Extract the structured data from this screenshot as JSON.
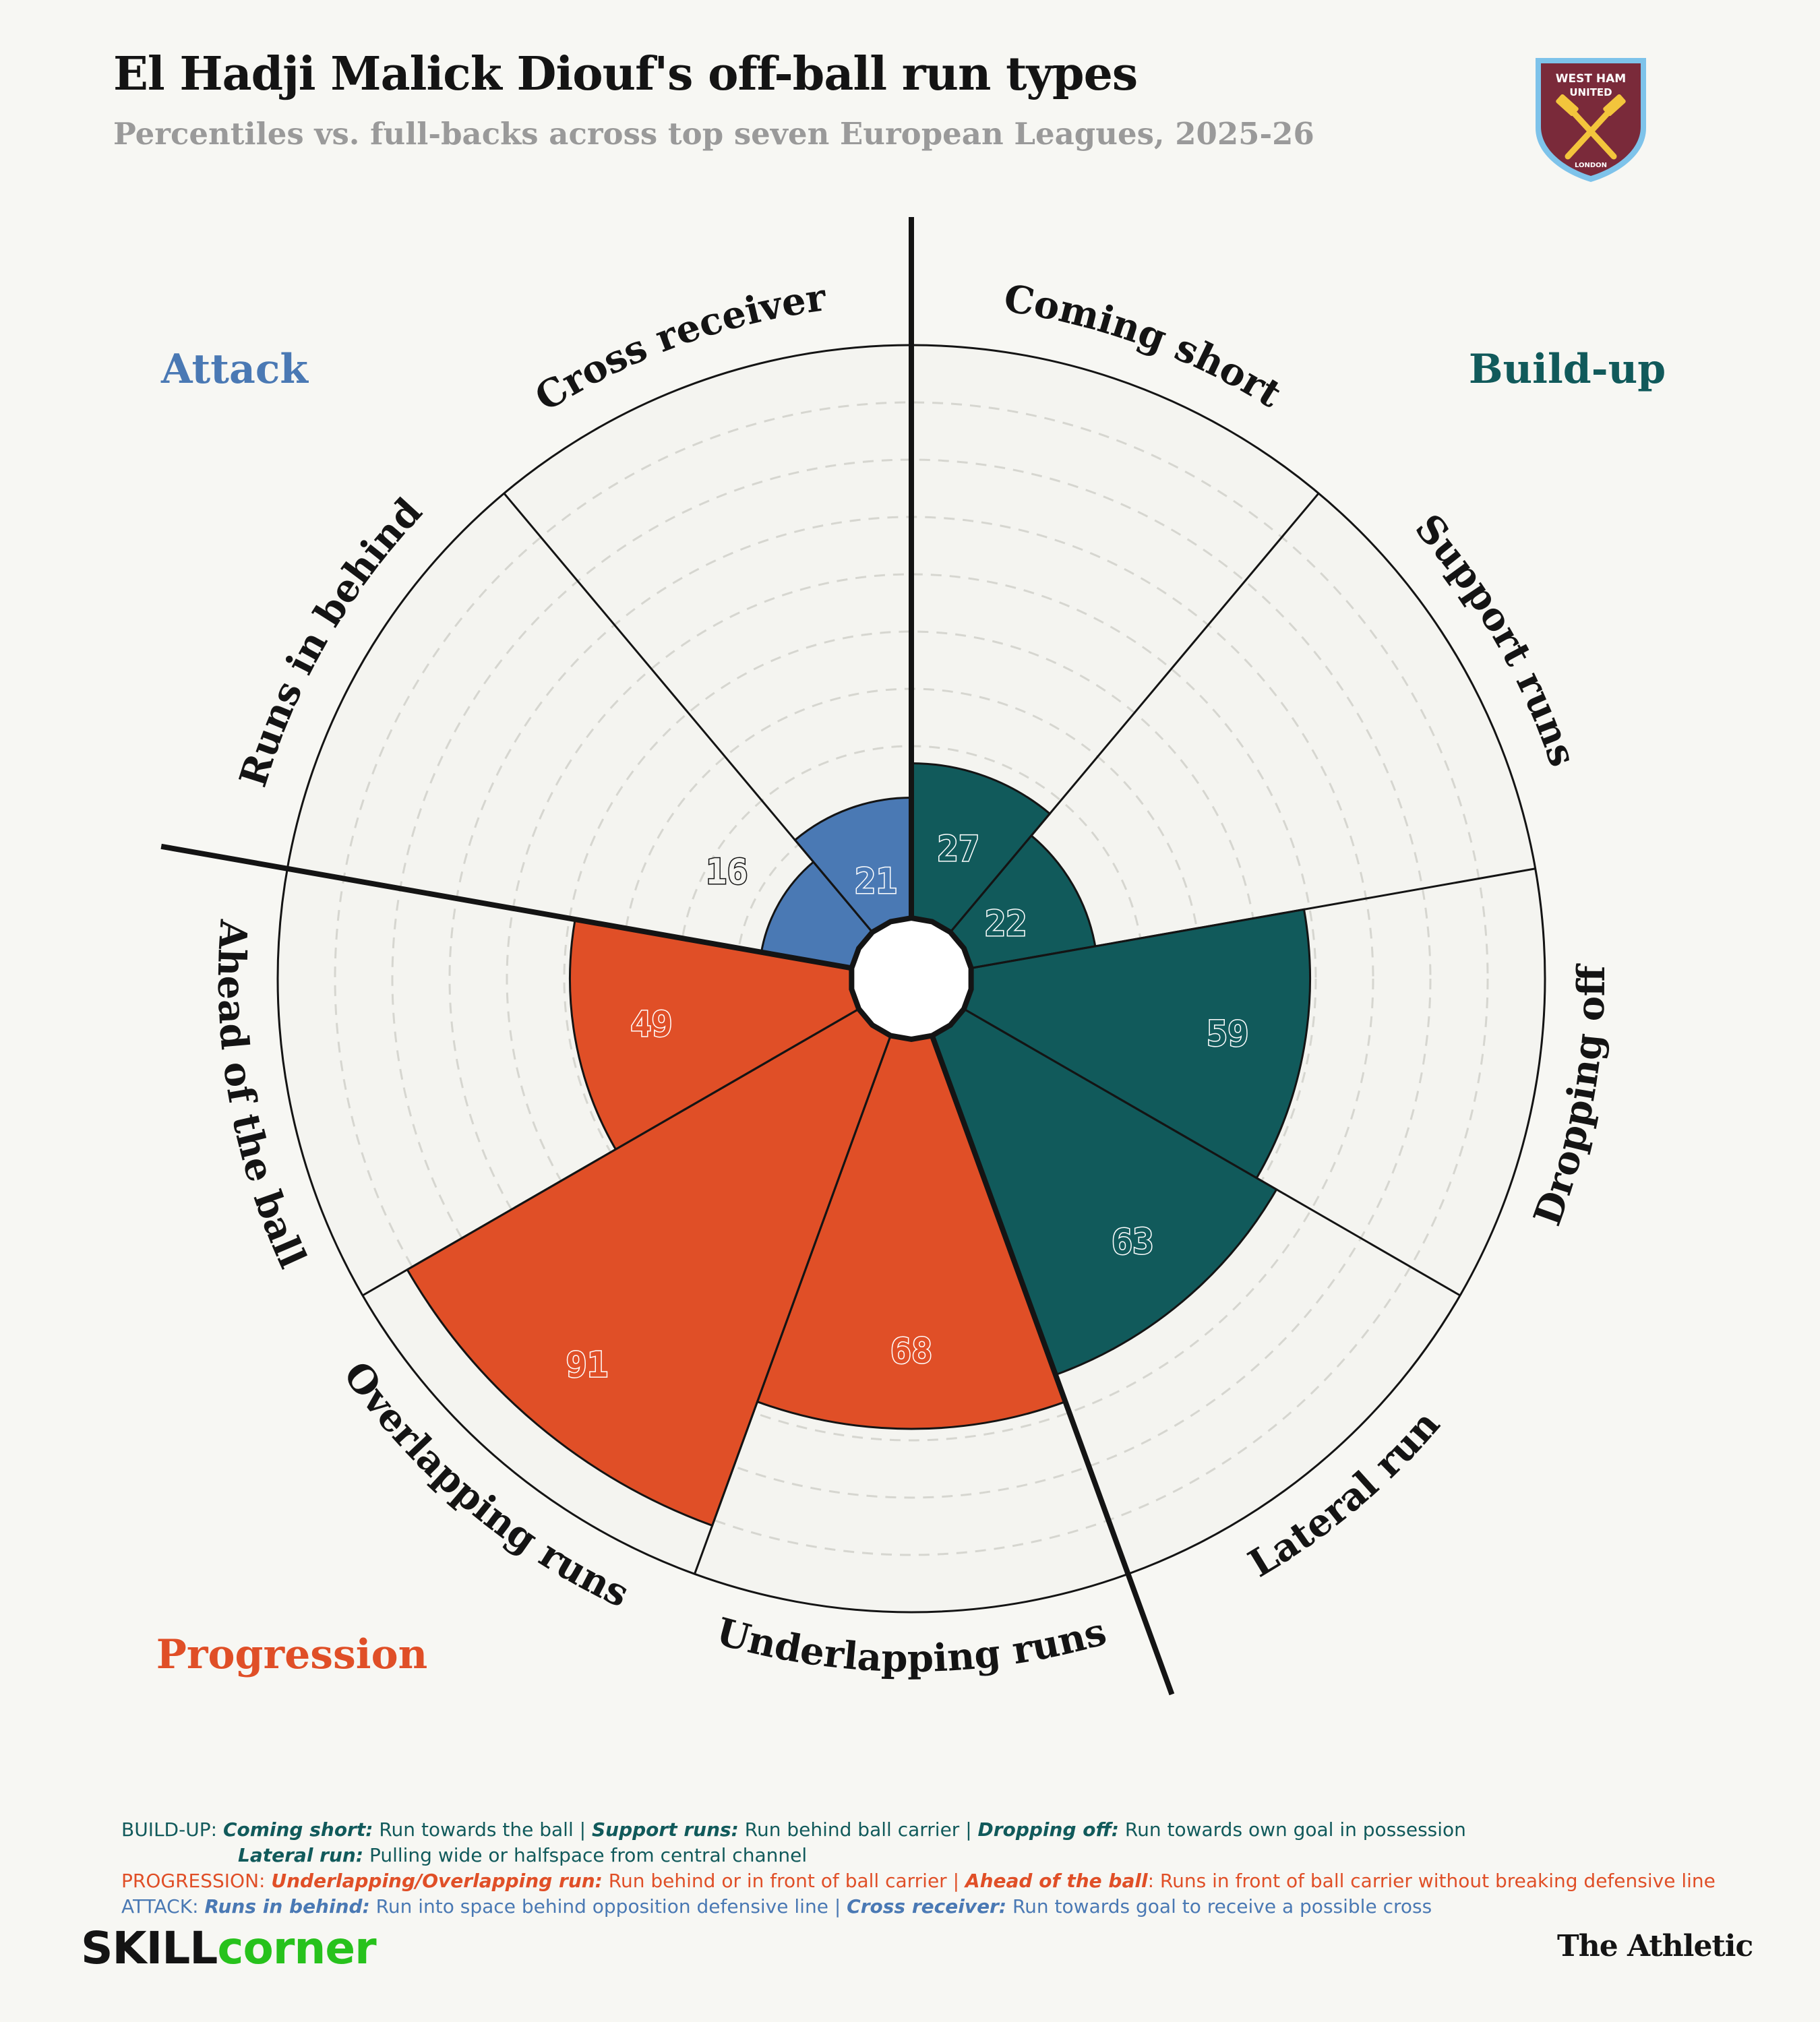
{
  "header": {
    "title": "El Hadji Malick Diouf's off-ball run types",
    "subtitle": "Percentiles vs. full-backs across top seven European Leagues, 2025-26"
  },
  "crest": {
    "line1": "WEST HAM",
    "line2": "UNITED",
    "line3": "LONDON",
    "colors": {
      "body": "#7a2a3a",
      "border": "#7ec3ea",
      "hammers": "#f3c53c"
    }
  },
  "chart_data": {
    "type": "polar-bar",
    "range": [
      0,
      100
    ],
    "grid": true,
    "categories": [
      "Coming short",
      "Support runs",
      "Dropping off",
      "Lateral run",
      "Underlapping runs",
      "Overlapping runs",
      "Ahead of the ball",
      "Runs in behind",
      "Cross receiver"
    ],
    "values": [
      27,
      22,
      59,
      63,
      68,
      91,
      49,
      16,
      21
    ],
    "groups": [
      {
        "name": "Build-up",
        "color": "#115a5b",
        "categories": [
          "Coming short",
          "Support runs",
          "Dropping off",
          "Lateral run"
        ]
      },
      {
        "name": "Progression",
        "color": "#e04f27",
        "categories": [
          "Underlapping runs",
          "Overlapping runs",
          "Ahead of the ball"
        ]
      },
      {
        "name": "Attack",
        "color": "#4a79b4",
        "categories": [
          "Runs in behind",
          "Cross receiver"
        ]
      }
    ]
  },
  "legend": {
    "buildup": {
      "prefix": "BUILD-UP: ",
      "t1": "Coming short:",
      "d1": " Run towards the ball | ",
      "t2": "Support runs:",
      "d2": " Run behind ball carrier | ",
      "t3": "Dropping off:",
      "d3": " Run towards own goal in possession",
      "t4": "Lateral run:",
      "d4": " Pulling wide or halfspace from central channel"
    },
    "progression": {
      "prefix": "PROGRESSION: ",
      "t1": "Underlapping/Overlapping run:",
      "d1": " Run behind or in front of ball carrier | ",
      "t2": "Ahead of the ball",
      "d2": ": Runs in front of ball carrier without breaking defensive line"
    },
    "attack": {
      "prefix": "ATTACK: ",
      "t1": "Runs in behind:",
      "d1": " Run into space behind opposition defensive line | ",
      "t2": "Cross receiver:",
      "d2": " Run towards goal to receive a possible cross"
    }
  },
  "footer": {
    "brand_left_1": "SKILL",
    "brand_left_2": "corner",
    "brand_right": "The Athletic"
  }
}
